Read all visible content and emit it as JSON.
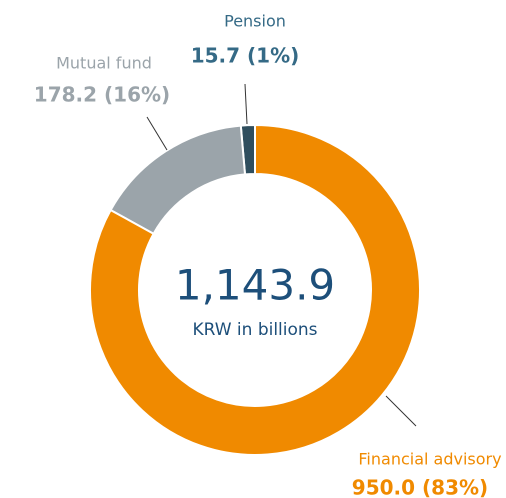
{
  "chart_data": {
    "type": "donut",
    "categories": [
      "Financial advisory",
      "Mutual fund",
      "Pension"
    ],
    "values": [
      950.0,
      178.2,
      15.7
    ],
    "value_labels": [
      "950.0 (83%)",
      "178.2 (16%)",
      "15.7 (1%)"
    ],
    "colors": [
      "#f08a00",
      "#9ba4aa",
      "#2f4e5e"
    ],
    "label_colors": [
      "#f08a00",
      "#9ba4aa",
      "#356a86"
    ],
    "center": {
      "value": 1143.9,
      "label": "1,143.9"
    },
    "center_subtitle": "KRW in billions"
  }
}
